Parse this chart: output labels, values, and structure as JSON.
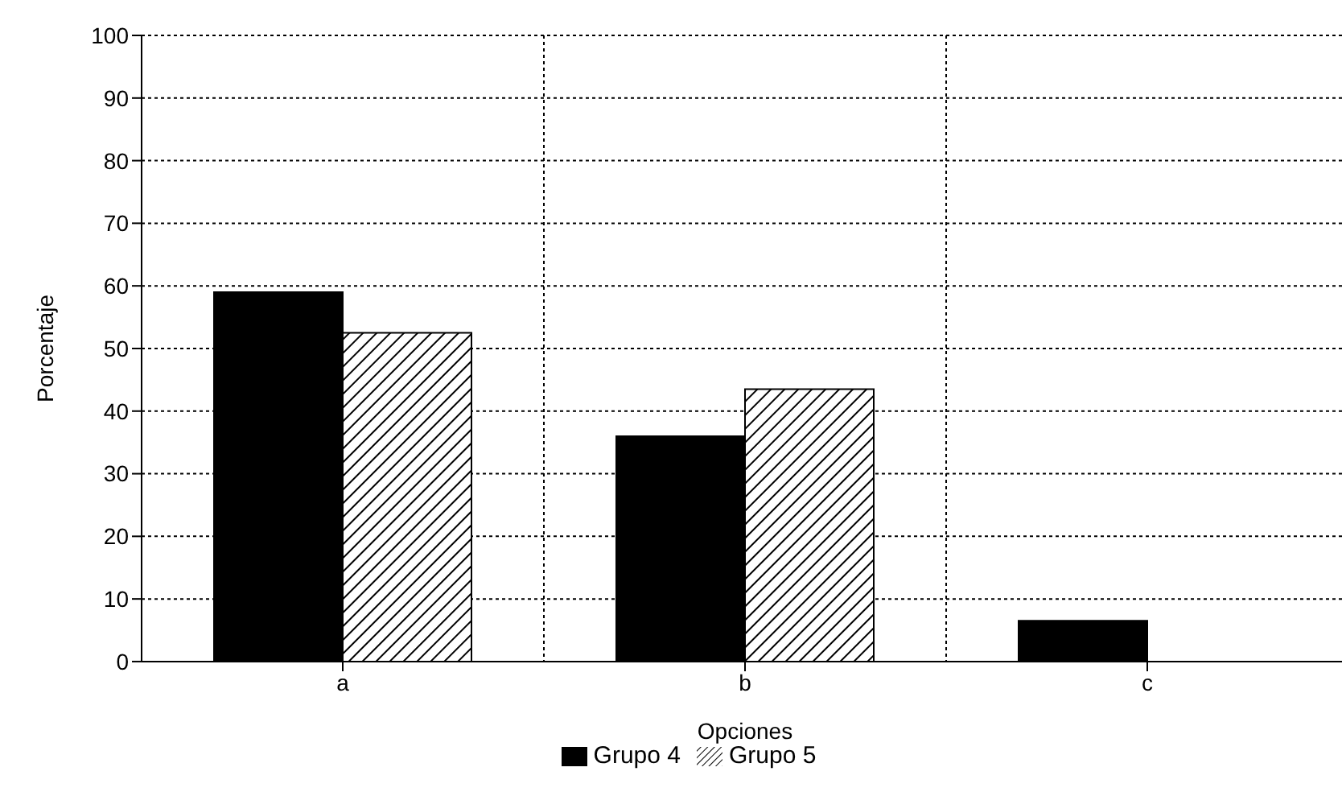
{
  "chart_data": {
    "type": "bar",
    "xlabel": "Opciones",
    "ylabel": "Porcentaje",
    "categories": [
      "a",
      "b",
      "c"
    ],
    "series": [
      {
        "name": "Grupo 4",
        "color": "#000000",
        "values": [
          59,
          36,
          6.5
        ]
      },
      {
        "name": "Grupo 5",
        "color": "#000000",
        "values": [
          52.5,
          43.5,
          0
        ]
      }
    ],
    "ylim": [
      0,
      100
    ],
    "yticks": [
      0,
      10,
      20,
      30,
      40,
      50,
      60,
      70,
      80,
      90,
      100
    ],
    "grid": true,
    "legend": "bottom"
  }
}
